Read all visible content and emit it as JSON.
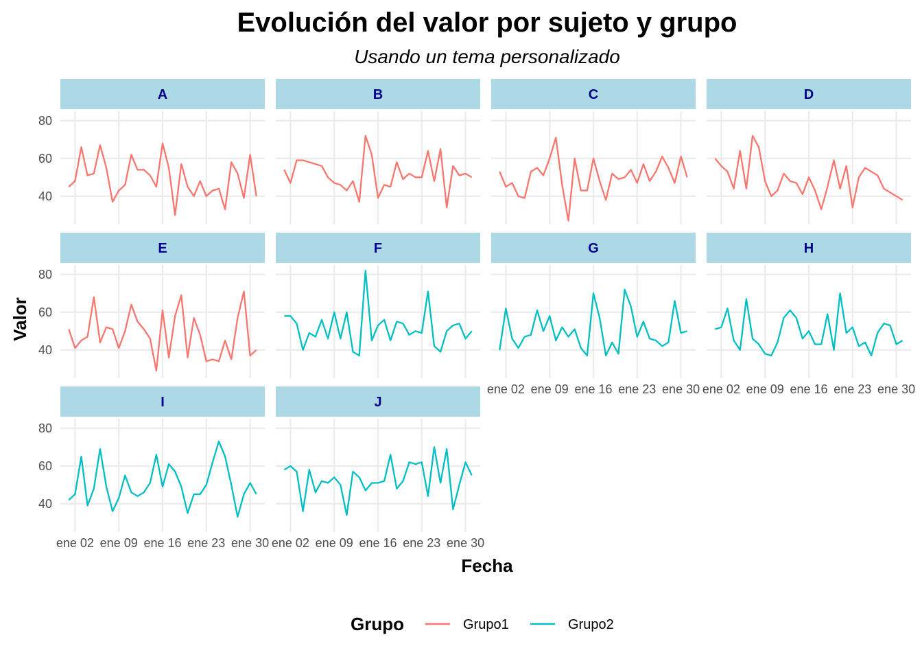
{
  "chart_data": {
    "type": "line",
    "title": "Evolución del valor por sujeto y grupo",
    "subtitle": "Usando un tema personalizado",
    "xlabel": "Fecha",
    "ylabel": "Valor",
    "legend_title": "Grupo",
    "legend_position": "bottom",
    "grid": true,
    "facet_layout": {
      "columns": 4,
      "rows": 3
    },
    "x_dates": [
      "01-01",
      "01-02",
      "01-03",
      "01-04",
      "01-05",
      "01-06",
      "01-07",
      "01-08",
      "01-09",
      "01-10",
      "01-11",
      "01-12",
      "01-13",
      "01-14",
      "01-15",
      "01-16",
      "01-17",
      "01-18",
      "01-19",
      "01-20",
      "01-21",
      "01-22",
      "01-23",
      "01-24",
      "01-25",
      "01-26",
      "01-27",
      "01-28",
      "01-29",
      "01-30",
      "01-31"
    ],
    "xlim": [
      "01-01",
      "01-31"
    ],
    "x_ticks": [
      "01-02",
      "01-09",
      "01-16",
      "01-23",
      "01-30"
    ],
    "x_tick_labels": [
      "ene 02",
      "ene 09",
      "ene 16",
      "ene 23",
      "ene 30"
    ],
    "ylim": [
      25,
      85
    ],
    "y_ticks": [
      40,
      60,
      80
    ],
    "y_tick_labels": [
      "40",
      "60",
      "80"
    ],
    "groups": [
      {
        "name": "Grupo1",
        "color": "#f8766d"
      },
      {
        "name": "Grupo2",
        "color": "#00bfc4"
      }
    ],
    "facets": [
      {
        "label": "A",
        "group": "Grupo1",
        "values": [
          45,
          48,
          66,
          51,
          52,
          67,
          55,
          37,
          43,
          46,
          62,
          54,
          54,
          51,
          45,
          68,
          55,
          30,
          57,
          45,
          40,
          48,
          40,
          43,
          44,
          33,
          58,
          52,
          39,
          62,
          40
        ]
      },
      {
        "label": "B",
        "group": "Grupo1",
        "values": [
          54,
          47,
          59,
          59,
          58,
          57,
          56,
          50,
          47,
          46,
          43,
          48,
          37,
          72,
          62,
          39,
          46,
          45,
          58,
          49,
          52,
          50,
          50,
          64,
          48,
          65,
          34,
          56,
          51,
          52,
          50
        ]
      },
      {
        "label": "C",
        "group": "Grupo1",
        "values": [
          53,
          45,
          47,
          40,
          39,
          53,
          55,
          51,
          60,
          71,
          46,
          27,
          60,
          43,
          43,
          60,
          48,
          38,
          52,
          49,
          50,
          54,
          47,
          57,
          48,
          53,
          61,
          55,
          47,
          61,
          50
        ]
      },
      {
        "label": "D",
        "group": "Grupo1",
        "values": [
          60,
          56,
          53,
          44,
          64,
          44,
          72,
          66,
          48,
          40,
          43,
          52,
          48,
          47,
          41,
          50,
          43,
          33,
          45,
          59,
          44,
          56,
          34,
          50,
          55,
          53,
          51,
          44,
          42,
          40,
          38
        ]
      },
      {
        "label": "E",
        "group": "Grupo1",
        "values": [
          51,
          41,
          45,
          47,
          68,
          44,
          52,
          51,
          41,
          50,
          64,
          55,
          51,
          46,
          29,
          61,
          36,
          58,
          69,
          36,
          57,
          48,
          34,
          35,
          34,
          45,
          35,
          57,
          71,
          37,
          40
        ]
      },
      {
        "label": "F",
        "group": "Grupo2",
        "values": [
          58,
          58,
          54,
          40,
          49,
          47,
          56,
          46,
          60,
          46,
          60,
          39,
          37,
          82,
          45,
          53,
          56,
          45,
          55,
          54,
          48,
          50,
          49,
          71,
          42,
          39,
          50,
          53,
          54,
          46,
          50
        ]
      },
      {
        "label": "G",
        "group": "Grupo2",
        "values": [
          40,
          62,
          46,
          41,
          47,
          48,
          61,
          50,
          58,
          45,
          52,
          47,
          51,
          41,
          37,
          70,
          57,
          37,
          44,
          38,
          72,
          63,
          47,
          55,
          46,
          45,
          42,
          44,
          66,
          49,
          50
        ]
      },
      {
        "label": "H",
        "group": "Grupo2",
        "values": [
          51,
          52,
          62,
          45,
          40,
          67,
          46,
          43,
          38,
          37,
          44,
          57,
          61,
          57,
          46,
          50,
          43,
          43,
          59,
          40,
          70,
          49,
          52,
          42,
          44,
          37,
          49,
          54,
          53,
          43,
          45
        ]
      },
      {
        "label": "I",
        "group": "Grupo2",
        "values": [
          42,
          45,
          65,
          39,
          48,
          69,
          49,
          36,
          43,
          55,
          46,
          44,
          46,
          51,
          66,
          49,
          61,
          57,
          49,
          35,
          45,
          45,
          50,
          62,
          73,
          65,
          50,
          33,
          45,
          51,
          45
        ]
      },
      {
        "label": "J",
        "group": "Grupo2",
        "values": [
          58,
          60,
          57,
          36,
          58,
          46,
          52,
          51,
          54,
          50,
          34,
          57,
          54,
          47,
          51,
          51,
          52,
          66,
          48,
          52,
          62,
          61,
          62,
          44,
          70,
          51,
          69,
          37,
          50,
          62,
          55
        ]
      }
    ]
  }
}
